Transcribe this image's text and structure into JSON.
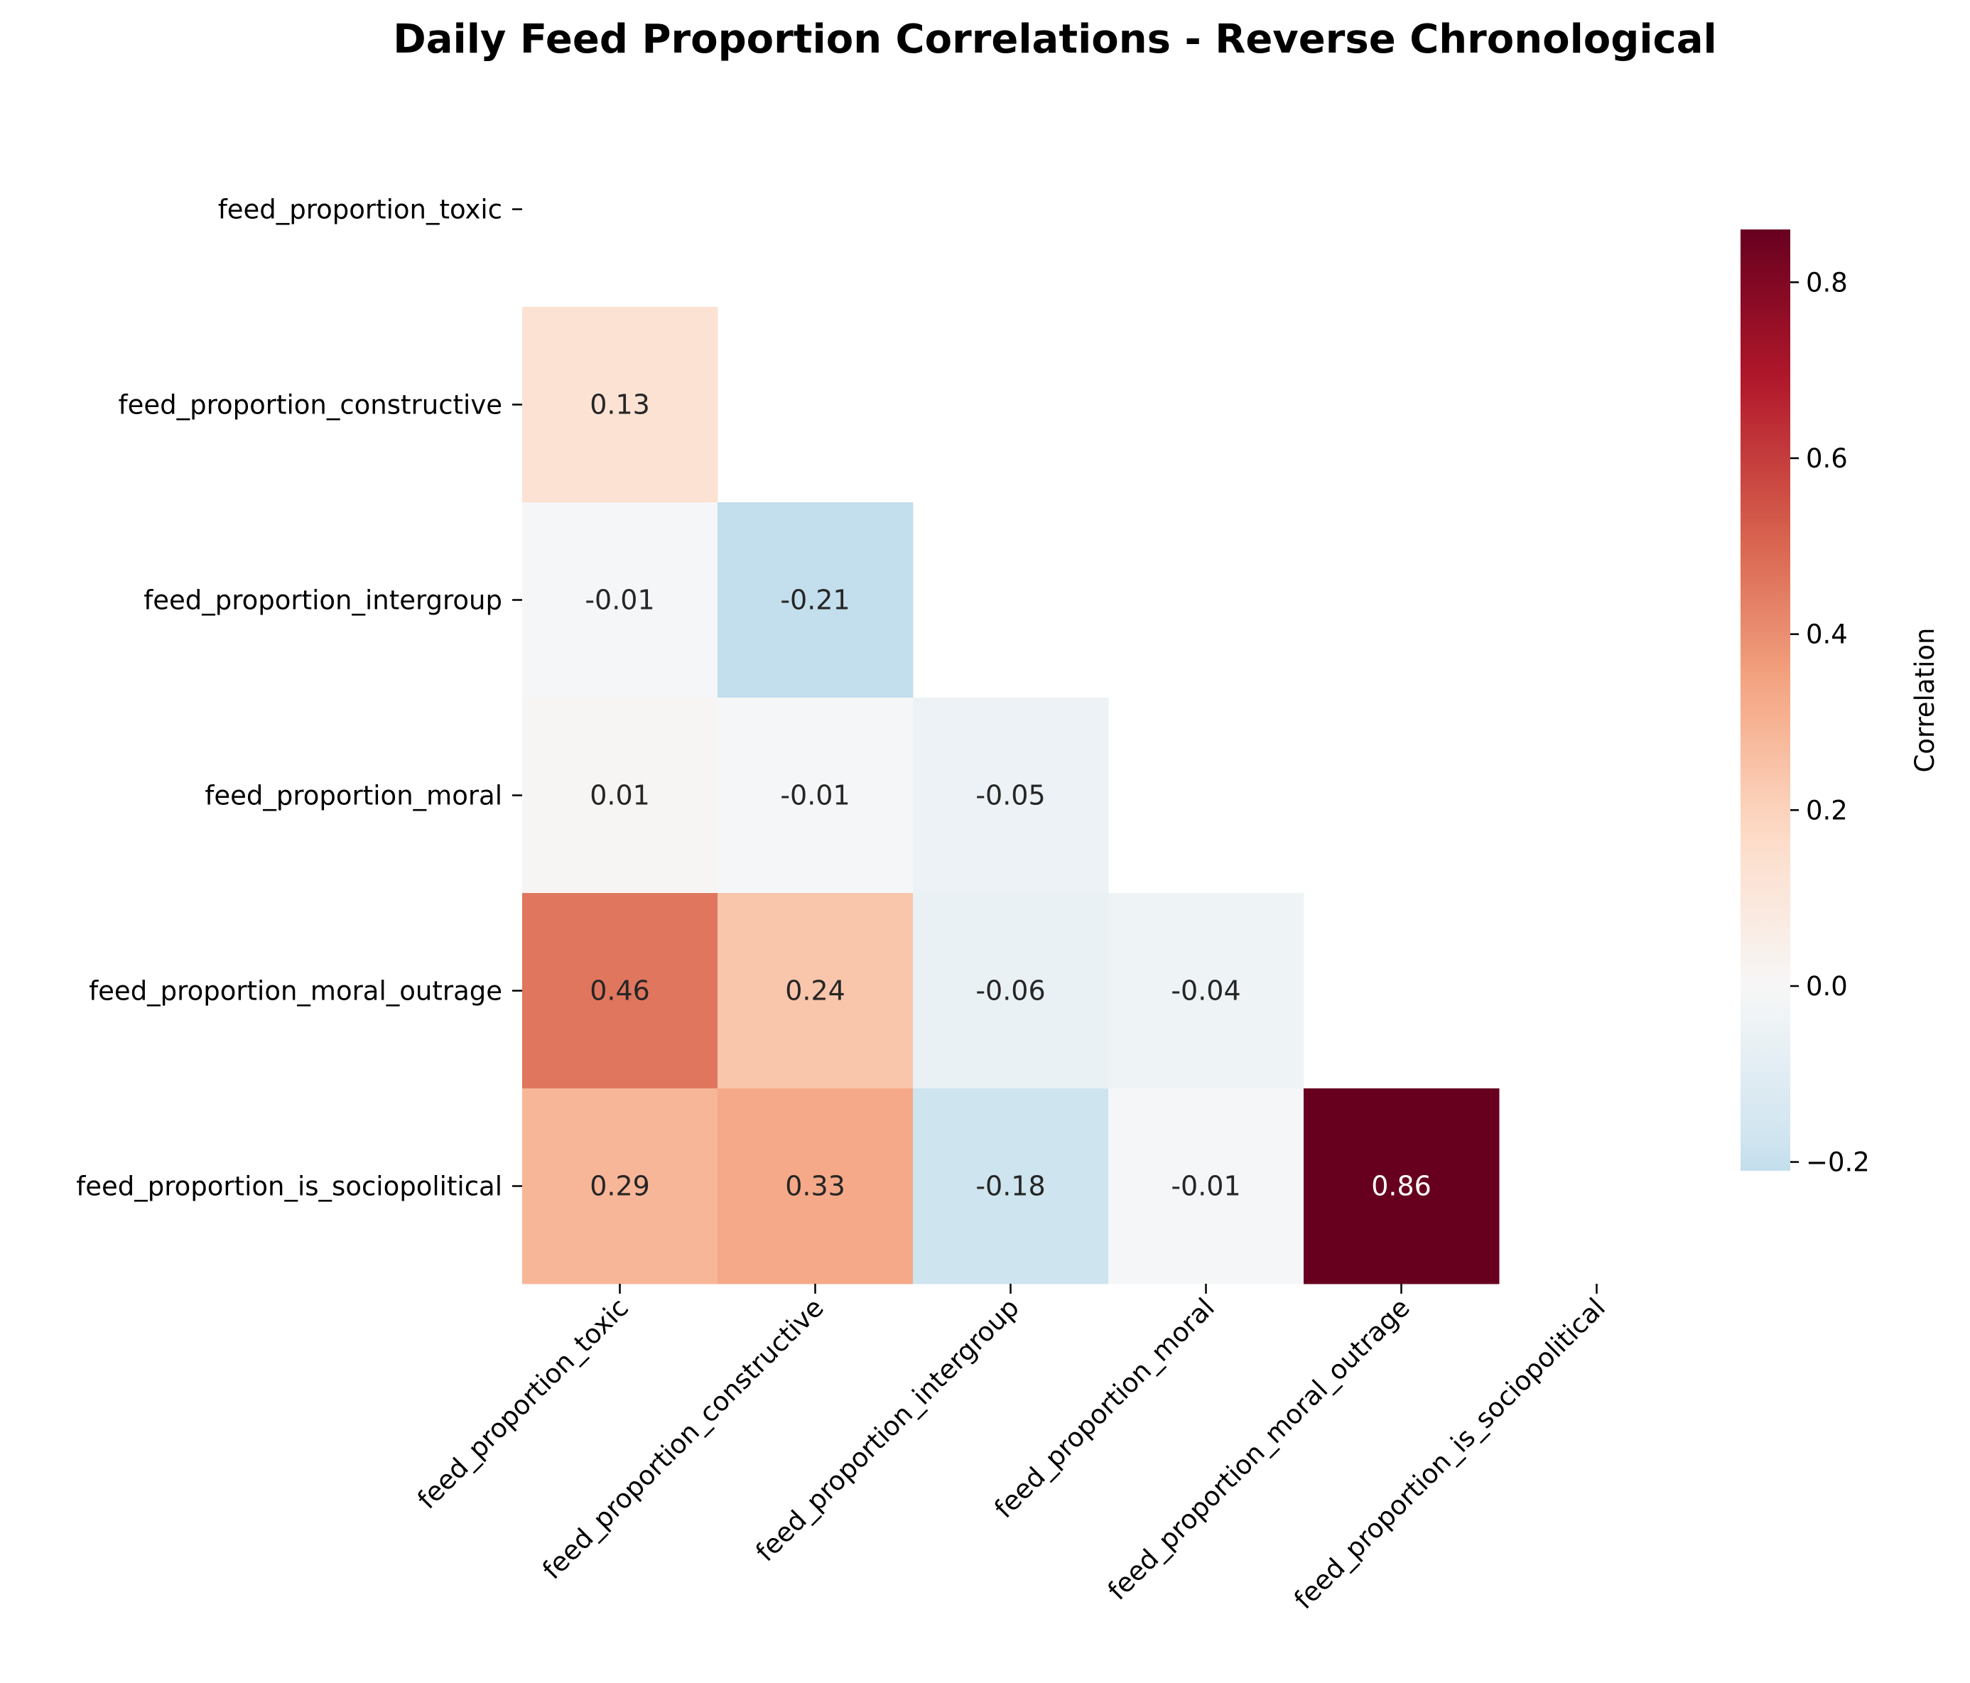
{
  "chart_data": {
    "type": "heatmap",
    "title": "Daily Feed Proportion Correlations - Reverse Chronological",
    "variables": [
      "feed_proportion_toxic",
      "feed_proportion_constructive",
      "feed_proportion_intergroup",
      "feed_proportion_moral",
      "feed_proportion_moral_outrage",
      "feed_proportion_is_sociopolitical"
    ],
    "mask": "upper-triangle-including-diagonal",
    "matrix": [
      [
        null,
        null,
        null,
        null,
        null,
        null
      ],
      [
        0.13,
        null,
        null,
        null,
        null,
        null
      ],
      [
        -0.01,
        -0.21,
        null,
        null,
        null,
        null
      ],
      [
        0.01,
        -0.01,
        -0.05,
        null,
        null,
        null
      ],
      [
        0.46,
        0.24,
        -0.06,
        -0.04,
        null,
        null
      ],
      [
        0.29,
        0.33,
        -0.18,
        -0.01,
        0.86,
        null
      ]
    ],
    "labels": [
      [
        null,
        null,
        null,
        null,
        null,
        null
      ],
      [
        "0.13",
        null,
        null,
        null,
        null,
        null
      ],
      [
        "-0.01",
        "-0.21",
        null,
        null,
        null,
        null
      ],
      [
        "0.01",
        "-0.01",
        "-0.05",
        null,
        null,
        null
      ],
      [
        "0.46",
        "0.24",
        "-0.06",
        "-0.04",
        null,
        null
      ],
      [
        "0.29",
        "0.33",
        "-0.18",
        "-0.01",
        "0.86",
        null
      ]
    ],
    "colormap": "RdBu_r",
    "color_range": [
      -0.21,
      0.86
    ],
    "colorbar": {
      "label": "Correlation",
      "ticks": [
        -0.2,
        0.0,
        0.2,
        0.4,
        0.6,
        0.8
      ],
      "tick_labels": [
        "−0.2",
        "0.0",
        "0.2",
        "0.4",
        "0.6",
        "0.8"
      ]
    }
  }
}
